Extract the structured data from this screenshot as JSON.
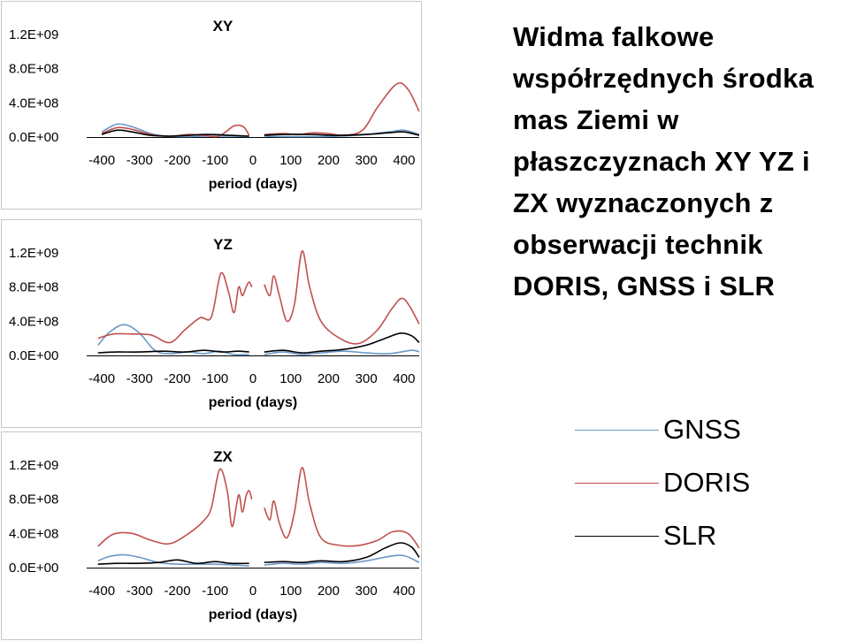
{
  "heading": "Widma falkowe współrzędnych środka mas Ziemi w płaszczyznach XY YZ i ZX wyznaczonych z obserwacji technik DORIS, GNSS i SLR",
  "legend": [
    {
      "label": "GNSS",
      "color": "#6a98c8"
    },
    {
      "label": "DORIS",
      "color": "#c0504d"
    },
    {
      "label": "SLR",
      "color": "#000000"
    }
  ],
  "chart_data": [
    {
      "type": "line",
      "title": "XY",
      "xlabel": "period (days)",
      "ylabel": "",
      "xlim": [
        -440,
        440
      ],
      "ylim": [
        0,
        1200000000
      ],
      "xticks": [
        "-400",
        "-300",
        "-200",
        "-100",
        "0",
        "100",
        "200",
        "300",
        "400"
      ],
      "yticks": [
        "1.2E+09",
        "8.0E+08",
        "4.0E+08",
        "0.0E+00"
      ],
      "series": [
        {
          "name": "GNSS",
          "color": "#6a98c8",
          "segments": [
            [
              [
                -400,
                60000000
              ],
              [
                -360,
                150000000
              ],
              [
                -320,
                120000000
              ],
              [
                -270,
                40000000
              ],
              [
                -230,
                10000000
              ],
              [
                -180,
                5000000
              ],
              [
                -120,
                10000000
              ],
              [
                -60,
                10000000
              ],
              [
                -10,
                5000000
              ]
            ],
            [
              [
                30,
                10000000
              ],
              [
                80,
                5000000
              ],
              [
                150,
                5000000
              ],
              [
                230,
                10000000
              ],
              [
                300,
                30000000
              ],
              [
                360,
                60000000
              ],
              [
                400,
                80000000
              ],
              [
                440,
                30000000
              ]
            ]
          ]
        },
        {
          "name": "DORIS",
          "color": "#c0504d",
          "segments": [
            [
              [
                -400,
                40000000
              ],
              [
                -360,
                110000000
              ],
              [
                -320,
                90000000
              ],
              [
                -270,
                30000000
              ],
              [
                -220,
                10000000
              ],
              [
                -170,
                30000000
              ],
              [
                -130,
                20000000
              ],
              [
                -90,
                10000000
              ],
              [
                -50,
                130000000
              ],
              [
                -25,
                120000000
              ],
              [
                -10,
                20000000
              ]
            ],
            [
              [
                30,
                30000000
              ],
              [
                80,
                40000000
              ],
              [
                120,
                30000000
              ],
              [
                160,
                50000000
              ],
              [
                200,
                40000000
              ],
              [
                240,
                20000000
              ],
              [
                290,
                80000000
              ],
              [
                330,
                350000000
              ],
              [
                380,
                620000000
              ],
              [
                410,
                560000000
              ],
              [
                440,
                300000000
              ]
            ]
          ]
        },
        {
          "name": "SLR",
          "color": "#000000",
          "segments": [
            [
              [
                -400,
                30000000
              ],
              [
                -360,
                80000000
              ],
              [
                -320,
                60000000
              ],
              [
                -270,
                20000000
              ],
              [
                -220,
                10000000
              ],
              [
                -170,
                20000000
              ],
              [
                -120,
                30000000
              ],
              [
                -60,
                20000000
              ],
              [
                -10,
                10000000
              ]
            ],
            [
              [
                30,
                20000000
              ],
              [
                80,
                30000000
              ],
              [
                150,
                30000000
              ],
              [
                230,
                20000000
              ],
              [
                300,
                30000000
              ],
              [
                360,
                50000000
              ],
              [
                400,
                60000000
              ],
              [
                440,
                20000000
              ]
            ]
          ]
        }
      ]
    },
    {
      "type": "line",
      "title": "YZ",
      "xlabel": "period (days)",
      "ylabel": "",
      "xlim": [
        -440,
        440
      ],
      "ylim": [
        0,
        1200000000
      ],
      "xticks": [
        "-400",
        "-300",
        "-200",
        "-100",
        "0",
        "100",
        "200",
        "300",
        "400"
      ],
      "yticks": [
        "1.2E+09",
        "8.0E+08",
        "4.0E+08",
        "0.0E+00"
      ],
      "series": [
        {
          "name": "GNSS",
          "color": "#6a98c8",
          "segments": [
            [
              [
                -410,
                120000000
              ],
              [
                -380,
                270000000
              ],
              [
                -340,
                360000000
              ],
              [
                -300,
                260000000
              ],
              [
                -260,
                60000000
              ],
              [
                -220,
                20000000
              ],
              [
                -170,
                40000000
              ],
              [
                -130,
                20000000
              ],
              [
                -90,
                50000000
              ],
              [
                -50,
                10000000
              ],
              [
                -10,
                10000000
              ]
            ],
            [
              [
                30,
                10000000
              ],
              [
                80,
                40000000
              ],
              [
                130,
                10000000
              ],
              [
                180,
                30000000
              ],
              [
                240,
                50000000
              ],
              [
                300,
                30000000
              ],
              [
                360,
                20000000
              ],
              [
                420,
                60000000
              ],
              [
                440,
                40000000
              ]
            ]
          ]
        },
        {
          "name": "DORIS",
          "color": "#c0504d",
          "segments": [
            [
              [
                -410,
                200000000
              ],
              [
                -370,
                250000000
              ],
              [
                -320,
                250000000
              ],
              [
                -270,
                240000000
              ],
              [
                -220,
                150000000
              ],
              [
                -180,
                300000000
              ],
              [
                -140,
                440000000
              ],
              [
                -110,
                450000000
              ],
              [
                -85,
                960000000
              ],
              [
                -65,
                750000000
              ],
              [
                -50,
                500000000
              ],
              [
                -38,
                800000000
              ],
              [
                -28,
                700000000
              ],
              [
                -18,
                800000000
              ],
              [
                -10,
                860000000
              ],
              [
                -3,
                800000000
              ]
            ],
            [
              [
                30,
                830000000
              ],
              [
                45,
                700000000
              ],
              [
                55,
                930000000
              ],
              [
                70,
                700000000
              ],
              [
                90,
                400000000
              ],
              [
                110,
                600000000
              ],
              [
                130,
                1220000000
              ],
              [
                150,
                800000000
              ],
              [
                180,
                400000000
              ],
              [
                230,
                200000000
              ],
              [
                280,
                140000000
              ],
              [
                330,
                300000000
              ],
              [
                370,
                560000000
              ],
              [
                400,
                660000000
              ],
              [
                440,
                370000000
              ]
            ]
          ]
        },
        {
          "name": "SLR",
          "color": "#000000",
          "segments": [
            [
              [
                -410,
                30000000
              ],
              [
                -360,
                40000000
              ],
              [
                -300,
                40000000
              ],
              [
                -240,
                50000000
              ],
              [
                -180,
                40000000
              ],
              [
                -130,
                60000000
              ],
              [
                -80,
                40000000
              ],
              [
                -40,
                50000000
              ],
              [
                -10,
                40000000
              ]
            ],
            [
              [
                30,
                40000000
              ],
              [
                80,
                60000000
              ],
              [
                130,
                30000000
              ],
              [
                180,
                50000000
              ],
              [
                240,
                70000000
              ],
              [
                300,
                120000000
              ],
              [
                350,
                200000000
              ],
              [
                390,
                260000000
              ],
              [
                420,
                230000000
              ],
              [
                440,
                150000000
              ]
            ]
          ]
        }
      ]
    },
    {
      "type": "line",
      "title": "ZX",
      "xlabel": "period (days)",
      "ylabel": "",
      "xlim": [
        -440,
        440
      ],
      "ylim": [
        0,
        1200000000
      ],
      "xticks": [
        "-400",
        "-300",
        "-200",
        "-100",
        "0",
        "100",
        "200",
        "300",
        "400"
      ],
      "yticks": [
        "1.2E+09",
        "8.0E+08",
        "4.0E+08",
        "0.0E+00"
      ],
      "series": [
        {
          "name": "GNSS",
          "color": "#6a98c8",
          "segments": [
            [
              [
                -410,
                80000000
              ],
              [
                -380,
                130000000
              ],
              [
                -340,
                150000000
              ],
              [
                -300,
                120000000
              ],
              [
                -250,
                60000000
              ],
              [
                -200,
                40000000
              ],
              [
                -150,
                40000000
              ],
              [
                -100,
                40000000
              ],
              [
                -50,
                30000000
              ],
              [
                -10,
                20000000
              ]
            ],
            [
              [
                30,
                30000000
              ],
              [
                80,
                50000000
              ],
              [
                130,
                40000000
              ],
              [
                180,
                60000000
              ],
              [
                240,
                50000000
              ],
              [
                300,
                80000000
              ],
              [
                360,
                130000000
              ],
              [
                400,
                140000000
              ],
              [
                440,
                60000000
              ]
            ]
          ]
        },
        {
          "name": "DORIS",
          "color": "#c0504d",
          "segments": [
            [
              [
                -410,
                250000000
              ],
              [
                -370,
                390000000
              ],
              [
                -320,
                400000000
              ],
              [
                -270,
                320000000
              ],
              [
                -220,
                280000000
              ],
              [
                -170,
                400000000
              ],
              [
                -130,
                550000000
              ],
              [
                -110,
                700000000
              ],
              [
                -88,
                1150000000
              ],
              [
                -68,
                900000000
              ],
              [
                -55,
                480000000
              ],
              [
                -38,
                850000000
              ],
              [
                -28,
                650000000
              ],
              [
                -18,
                840000000
              ],
              [
                -10,
                900000000
              ],
              [
                -3,
                800000000
              ]
            ],
            [
              [
                30,
                700000000
              ],
              [
                45,
                560000000
              ],
              [
                55,
                780000000
              ],
              [
                70,
                520000000
              ],
              [
                90,
                350000000
              ],
              [
                110,
                650000000
              ],
              [
                130,
                1170000000
              ],
              [
                150,
                750000000
              ],
              [
                180,
                350000000
              ],
              [
                230,
                260000000
              ],
              [
                280,
                260000000
              ],
              [
                330,
                320000000
              ],
              [
                370,
                420000000
              ],
              [
                410,
                400000000
              ],
              [
                440,
                230000000
              ]
            ]
          ]
        },
        {
          "name": "SLR",
          "color": "#000000",
          "segments": [
            [
              [
                -410,
                40000000
              ],
              [
                -360,
                50000000
              ],
              [
                -300,
                50000000
              ],
              [
                -250,
                60000000
              ],
              [
                -200,
                90000000
              ],
              [
                -150,
                50000000
              ],
              [
                -100,
                70000000
              ],
              [
                -60,
                50000000
              ],
              [
                -10,
                50000000
              ]
            ],
            [
              [
                30,
                60000000
              ],
              [
                80,
                70000000
              ],
              [
                130,
                60000000
              ],
              [
                180,
                80000000
              ],
              [
                240,
                70000000
              ],
              [
                300,
                120000000
              ],
              [
                350,
                230000000
              ],
              [
                390,
                290000000
              ],
              [
                420,
                240000000
              ],
              [
                440,
                120000000
              ]
            ]
          ]
        }
      ]
    }
  ]
}
